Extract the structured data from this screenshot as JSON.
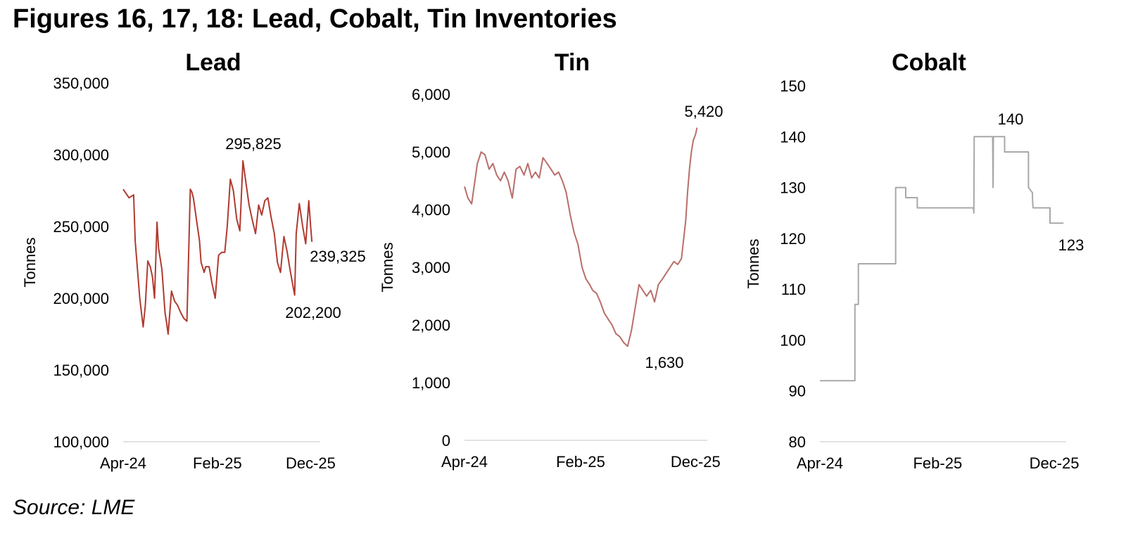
{
  "figure_title": "Figures 16, 17, 18: Lead, Cobalt, Tin Inventories",
  "source": "Source: LME",
  "chart_data": [
    {
      "type": "line",
      "title": "Lead",
      "ylabel": "Tonnes",
      "xlabel": "",
      "color": "#b03a30",
      "ylim": [
        100000,
        350000
      ],
      "yticks": [
        100000,
        150000,
        200000,
        250000,
        300000,
        350000
      ],
      "ytick_labels": [
        "100,000",
        "150,000",
        "200,000",
        "250,000",
        "300,000",
        "350,000"
      ],
      "xlim": [
        "2024-04-01",
        "2026-01-01"
      ],
      "xticks": [
        "2024-04-01",
        "2025-02-01",
        "2025-12-01"
      ],
      "xtick_labels": [
        "Apr-24",
        "Feb-25",
        "Dec-25"
      ],
      "grid": false,
      "series": [
        {
          "x": [
            "2024-04-01",
            "2024-04-20",
            "2024-05-05",
            "2024-05-10",
            "2024-05-25",
            "2024-06-05",
            "2024-06-12",
            "2024-06-20",
            "2024-06-28",
            "2024-07-05",
            "2024-07-12",
            "2024-07-20",
            "2024-07-25",
            "2024-08-05",
            "2024-08-15",
            "2024-08-20",
            "2024-08-25",
            "2024-09-05",
            "2024-09-15",
            "2024-09-25",
            "2024-10-05",
            "2024-10-15",
            "2024-10-25",
            "2024-11-05",
            "2024-11-10",
            "2024-11-15",
            "2024-11-25",
            "2024-12-05",
            "2024-12-10",
            "2024-12-20",
            "2024-12-25",
            "2025-01-05",
            "2025-01-15",
            "2025-01-25",
            "2025-02-05",
            "2025-02-15",
            "2025-02-25",
            "2025-03-05",
            "2025-03-15",
            "2025-03-25",
            "2025-04-05",
            "2025-04-15",
            "2025-04-25",
            "2025-05-05",
            "2025-05-15",
            "2025-05-25",
            "2025-06-05",
            "2025-06-15",
            "2025-06-25",
            "2025-07-05",
            "2025-07-15",
            "2025-07-25",
            "2025-08-05",
            "2025-08-15",
            "2025-08-25",
            "2025-09-05",
            "2025-09-15",
            "2025-09-25",
            "2025-10-05",
            "2025-10-10",
            "2025-10-15",
            "2025-10-25",
            "2025-11-05",
            "2025-11-15",
            "2025-11-25",
            "2025-12-01",
            "2025-12-05"
          ],
          "values": [
            276000,
            270000,
            272000,
            240000,
            200000,
            180000,
            195000,
            226000,
            222000,
            215000,
            200000,
            253000,
            235000,
            220000,
            190000,
            183000,
            175000,
            205000,
            198000,
            195000,
            190000,
            186000,
            184000,
            276000,
            274000,
            270000,
            255000,
            240000,
            225000,
            218000,
            222000,
            222000,
            210000,
            200000,
            230000,
            232000,
            232000,
            250000,
            283000,
            275000,
            255000,
            247000,
            295825,
            280000,
            265000,
            255000,
            245000,
            265000,
            258000,
            268000,
            270000,
            257000,
            245000,
            225000,
            218000,
            243000,
            233000,
            220000,
            208000,
            202200,
            245000,
            266000,
            250000,
            238000,
            268000,
            250000,
            239325
          ]
        }
      ],
      "annotations": [
        "295,825",
        "202,200",
        "239,325"
      ]
    },
    {
      "type": "line",
      "title": "Tin",
      "ylabel": "Tonnes",
      "xlabel": "",
      "color": "#b86e6a",
      "ylim": [
        0,
        6000
      ],
      "yticks": [
        0,
        1000,
        2000,
        3000,
        4000,
        5000,
        6000
      ],
      "ytick_labels": [
        "0",
        "1,000",
        "2,000",
        "3,000",
        "4,000",
        "5,000",
        "6,000"
      ],
      "xlim": [
        "2024-04-01",
        "2026-01-01"
      ],
      "xticks": [
        "2024-04-01",
        "2025-02-01",
        "2025-12-01"
      ],
      "xtick_labels": [
        "Apr-24",
        "Feb-25",
        "Dec-25"
      ],
      "grid": false,
      "series": [
        {
          "x": [
            "2024-04-01",
            "2024-04-10",
            "2024-04-20",
            "2024-05-05",
            "2024-05-15",
            "2024-05-25",
            "2024-06-05",
            "2024-06-15",
            "2024-06-25",
            "2024-07-05",
            "2024-07-15",
            "2024-07-25",
            "2024-08-05",
            "2024-08-15",
            "2024-08-25",
            "2024-09-05",
            "2024-09-15",
            "2024-09-25",
            "2024-10-05",
            "2024-10-15",
            "2024-10-25",
            "2024-11-05",
            "2024-11-15",
            "2024-11-25",
            "2024-12-05",
            "2024-12-15",
            "2024-12-25",
            "2025-01-05",
            "2025-01-15",
            "2025-01-25",
            "2025-02-05",
            "2025-02-15",
            "2025-02-25",
            "2025-03-05",
            "2025-03-15",
            "2025-03-25",
            "2025-04-05",
            "2025-04-15",
            "2025-04-25",
            "2025-05-05",
            "2025-05-15",
            "2025-05-25",
            "2025-06-05",
            "2025-06-15",
            "2025-06-25",
            "2025-07-05",
            "2025-07-15",
            "2025-07-25",
            "2025-08-05",
            "2025-08-15",
            "2025-08-25",
            "2025-09-05",
            "2025-09-15",
            "2025-09-25",
            "2025-10-05",
            "2025-10-15",
            "2025-10-25",
            "2025-11-05",
            "2025-11-10",
            "2025-11-15",
            "2025-11-20",
            "2025-11-25",
            "2025-12-01",
            "2025-12-05"
          ],
          "values": [
            4400,
            4200,
            4100,
            4800,
            5000,
            4950,
            4700,
            4800,
            4600,
            4500,
            4650,
            4500,
            4200,
            4700,
            4750,
            4600,
            4800,
            4550,
            4650,
            4550,
            4900,
            4800,
            4700,
            4600,
            4650,
            4500,
            4300,
            3900,
            3600,
            3400,
            3000,
            2800,
            2700,
            2600,
            2550,
            2400,
            2200,
            2100,
            2000,
            1850,
            1800,
            1700,
            1630,
            1900,
            2300,
            2700,
            2600,
            2500,
            2600,
            2400,
            2700,
            2800,
            2900,
            3000,
            3100,
            3050,
            3150,
            3800,
            4300,
            4700,
            5000,
            5200,
            5300,
            5420
          ]
        }
      ],
      "annotations": [
        "5,420",
        "1,630"
      ]
    },
    {
      "type": "line",
      "title": "Cobalt",
      "ylabel": "Tonnes",
      "xlabel": "",
      "color": "#a8a8a8",
      "ylim": [
        80,
        150
      ],
      "yticks": [
        80,
        90,
        100,
        110,
        120,
        130,
        140,
        150
      ],
      "ytick_labels": [
        "80",
        "90",
        "100",
        "110",
        "120",
        "130",
        "140",
        "150"
      ],
      "xlim": [
        "2024-04-01",
        "2026-01-01"
      ],
      "xticks": [
        "2024-04-01",
        "2025-02-01",
        "2025-12-01"
      ],
      "xtick_labels": [
        "Apr-24",
        "Feb-25",
        "Dec-25"
      ],
      "grid": false,
      "series": [
        {
          "x": [
            "2024-04-01",
            "2024-07-01",
            "2024-07-01",
            "2024-07-10",
            "2024-07-10",
            "2024-10-15",
            "2024-10-15",
            "2024-11-10",
            "2024-11-10",
            "2024-12-10",
            "2024-12-10",
            "2025-05-05",
            "2025-05-06",
            "2025-05-07",
            "2025-06-24",
            "2025-06-25",
            "2025-06-26",
            "2025-07-25",
            "2025-07-25",
            "2025-09-25",
            "2025-09-25",
            "2025-10-05",
            "2025-10-06",
            "2025-10-07",
            "2025-11-20",
            "2025-11-20",
            "2025-12-25"
          ],
          "values": [
            92,
            92,
            107,
            107,
            115,
            115,
            130,
            130,
            128,
            128,
            126,
            126,
            125,
            140,
            140,
            130,
            140,
            140,
            137,
            137,
            130,
            129,
            127,
            126,
            126,
            123,
            123
          ]
        }
      ],
      "annotations": [
        "140",
        "123"
      ]
    }
  ]
}
